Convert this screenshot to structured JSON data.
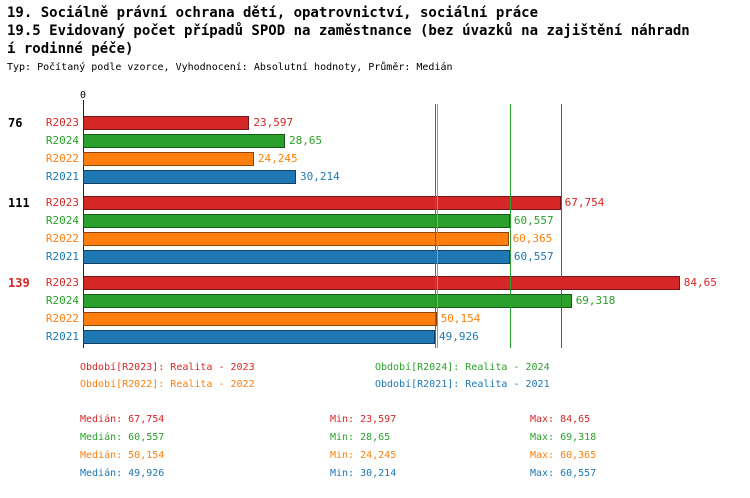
{
  "header": {
    "title_line1": "19. Sociálně právní ochrana dětí, opatrovnictví, sociální práce",
    "title_line2": "19.5 Evidovaný počet případů SPOD na zaměstnance (bez úvazků na zajištění náhradn",
    "title_line3": "í rodinné péče)",
    "subtitle": "Typ: Počítaný podle vzorce, Vyhodnocení: Absolutní hodnoty, Průměr: Medián"
  },
  "chart_data": {
    "type": "bar",
    "orientation": "horizontal",
    "axis": {
      "zero_label": "0",
      "xlim": [
        0,
        85
      ],
      "grid": false
    },
    "series_colors": {
      "R2023": "#d62728",
      "R2024": "#2ca02c",
      "R2022": "#ff7f0e",
      "R2021": "#1f77b4"
    },
    "groups": [
      {
        "label": "76",
        "label_color": "#000000",
        "bars": [
          {
            "series": "R2023",
            "value": 23.597,
            "value_label": "23,597"
          },
          {
            "series": "R2024",
            "value": 28.65,
            "value_label": "28,65"
          },
          {
            "series": "R2022",
            "value": 24.245,
            "value_label": "24,245"
          },
          {
            "series": "R2021",
            "value": 30.214,
            "value_label": "30,214"
          }
        ]
      },
      {
        "label": "111",
        "label_color": "#000000",
        "bars": [
          {
            "series": "R2023",
            "value": 67.754,
            "value_label": "67,754"
          },
          {
            "series": "R2024",
            "value": 60.557,
            "value_label": "60,557"
          },
          {
            "series": "R2022",
            "value": 60.365,
            "value_label": "60,365"
          },
          {
            "series": "R2021",
            "value": 60.557,
            "value_label": "60,557"
          }
        ]
      },
      {
        "label": "139",
        "label_color": "#d62728",
        "bars": [
          {
            "series": "R2023",
            "value": 84.65,
            "value_label": "84,65"
          },
          {
            "series": "R2024",
            "value": 69.318,
            "value_label": "69,318"
          },
          {
            "series": "R2022",
            "value": 50.154,
            "value_label": "50,154"
          },
          {
            "series": "R2021",
            "value": 49.926,
            "value_label": "49,926"
          }
        ]
      }
    ],
    "median_lines": [
      {
        "series": "R2023",
        "value": 67.754
      },
      {
        "series": "R2024",
        "value": 60.557
      },
      {
        "series": "R2022",
        "value": 50.154
      },
      {
        "series": "R2021",
        "value": 49.926
      }
    ],
    "legend": [
      {
        "series": "R2023",
        "text": "Období[R2023]: Realita - 2023"
      },
      {
        "series": "R2024",
        "text": "Období[R2024]: Realita - 2024"
      },
      {
        "series": "R2022",
        "text": "Období[R2022]: Realita - 2022"
      },
      {
        "series": "R2021",
        "text": "Období[R2021]: Realita - 2021"
      }
    ],
    "stats": [
      {
        "series": "R2023",
        "median": "Medián: 67,754",
        "min": "Min: 23,597",
        "max": "Max: 84,65"
      },
      {
        "series": "R2024",
        "median": "Medián: 60,557",
        "min": "Min: 28,65",
        "max": "Max: 69,318"
      },
      {
        "series": "R2022",
        "median": "Medián: 50,154",
        "min": "Min: 24,245",
        "max": "Max: 60,365"
      },
      {
        "series": "R2021",
        "median": "Medián: 49,926",
        "min": "Min: 30,214",
        "max": "Max: 60,557"
      }
    ]
  }
}
